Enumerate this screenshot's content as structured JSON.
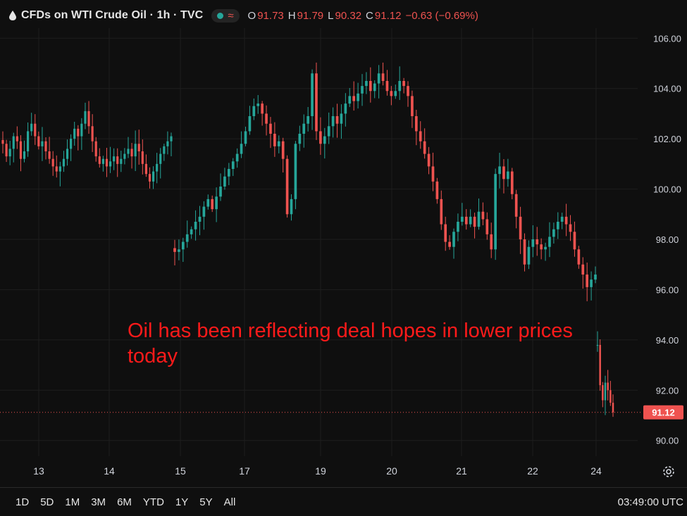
{
  "header": {
    "title": "CFDs on WTI Crude Oil · 1h · TVC",
    "o_label": "O",
    "o_value": "91.73",
    "h_label": "H",
    "h_value": "91.79",
    "l_label": "L",
    "l_value": "90.32",
    "c_label": "C",
    "c_value": "91.12",
    "change": "−0.63 (−0.69%)"
  },
  "annotation": "Oil has been reflecting deal hopes in lower prices today",
  "bottom": {
    "ranges": [
      "1D",
      "5D",
      "1M",
      "3M",
      "6M",
      "YTD",
      "1Y",
      "5Y",
      "All"
    ],
    "clock": "03:49:00 UTC"
  },
  "colors": {
    "up": "#26a69a",
    "down": "#ef5350",
    "background": "#0f0f0f",
    "grid": "#1e1e1e",
    "text": "#d1d4dc"
  },
  "icons": {
    "symbol": "drop-icon",
    "market_status": "live-dot",
    "delay": "wave-icon",
    "settings": "gear-icon"
  },
  "chart_data": {
    "type": "candlestick",
    "last_price": 91.12,
    "last_price_label": "91.12",
    "y_ticks": [
      "106.00",
      "104.00",
      "102.00",
      "100.00",
      "98.00",
      "96.00",
      "94.00",
      "92.00",
      "90.00"
    ],
    "ylim": [
      89.6,
      106.4
    ],
    "x_ticks": [
      "13",
      "14",
      "15",
      "17",
      "19",
      "20",
      "21",
      "22",
      "24"
    ],
    "series": [
      {
        "segment": "13-14",
        "closes": [
          101.8,
          101.3,
          101.6,
          102.1,
          101.9,
          101.2,
          101.5,
          102.3,
          102.6,
          102.1,
          101.7,
          101.9,
          101.5,
          101.2,
          100.9,
          100.7,
          100.9,
          101.2,
          101.6,
          102.0,
          102.4,
          102.1,
          102.6,
          103.1,
          102.5,
          101.9,
          101.3,
          101.0,
          101.2,
          100.9,
          101.1,
          101.3,
          101.0,
          101.2,
          101.4,
          101.6,
          101.3,
          101.8,
          101.5,
          101.0,
          100.6,
          100.3,
          100.7,
          101.0,
          101.4,
          101.7,
          101.9,
          102.1
        ]
      },
      {
        "segment": "15-24 pre-gap",
        "closes": [
          97.5,
          97.6,
          97.9,
          98.2,
          98.4,
          98.7,
          98.9,
          99.3,
          99.6,
          99.2,
          99.7,
          100.1,
          100.5,
          100.8,
          101.1,
          101.4,
          101.8,
          102.3,
          102.9,
          103.3,
          103.4,
          103.0,
          102.6,
          102.2,
          101.7,
          101.9,
          101.2,
          99.0,
          99.6,
          101.8,
          102.2,
          102.6,
          102.9,
          104.6,
          102.3,
          101.8,
          102.1,
          102.5,
          102.9,
          102.6,
          103.0,
          103.4,
          103.7,
          103.5,
          103.8,
          104.1,
          104.3,
          103.9,
          104.2,
          104.6,
          104.3,
          103.9,
          103.7,
          103.9,
          104.3,
          104.1,
          103.7,
          102.9,
          102.3,
          101.9,
          101.4,
          100.9,
          100.3,
          99.6,
          98.6,
          97.9,
          97.7,
          98.3,
          98.7,
          98.9,
          98.6,
          98.9,
          98.5,
          99.1,
          98.8,
          98.2,
          97.6,
          100.6,
          100.9,
          100.4,
          100.7,
          99.8,
          98.9,
          98.0,
          97.0,
          97.7,
          98.0,
          97.8,
          97.6,
          97.7,
          98.1,
          98.4,
          98.7,
          98.9,
          98.6,
          98.3,
          97.6,
          97.0,
          96.6,
          96.1,
          96.4,
          96.6
        ]
      },
      {
        "segment": "24 post-gap",
        "closes": [
          93.8,
          92.2,
          91.6,
          92.3,
          92.0,
          91.5,
          91.12
        ]
      }
    ]
  }
}
